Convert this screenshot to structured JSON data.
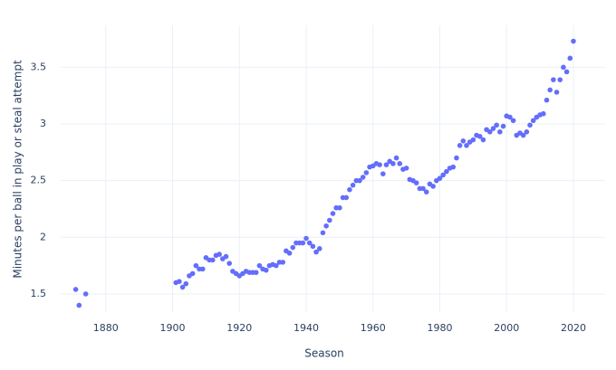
{
  "chart_data": {
    "type": "scatter",
    "x_label": "Season",
    "y_label": "Minutes per ball in play or steal attempt",
    "color": "#636efa",
    "grid": true,
    "x": [
      1871,
      1872,
      1874,
      1901,
      1902,
      1903,
      1904,
      1905,
      1906,
      1907,
      1908,
      1909,
      1910,
      1911,
      1912,
      1913,
      1914,
      1915,
      1916,
      1917,
      1918,
      1919,
      1920,
      1921,
      1922,
      1923,
      1924,
      1925,
      1926,
      1927,
      1928,
      1929,
      1930,
      1931,
      1932,
      1933,
      1934,
      1935,
      1936,
      1937,
      1938,
      1939,
      1940,
      1941,
      1942,
      1943,
      1944,
      1945,
      1946,
      1947,
      1948,
      1949,
      1950,
      1951,
      1952,
      1953,
      1954,
      1955,
      1956,
      1957,
      1958,
      1959,
      1960,
      1961,
      1962,
      1963,
      1964,
      1965,
      1966,
      1967,
      1968,
      1969,
      1970,
      1971,
      1972,
      1973,
      1974,
      1975,
      1976,
      1977,
      1978,
      1979,
      1980,
      1981,
      1982,
      1983,
      1984,
      1985,
      1986,
      1987,
      1988,
      1989,
      1990,
      1991,
      1992,
      1993,
      1994,
      1995,
      1996,
      1997,
      1998,
      1999,
      2000,
      2001,
      2002,
      2003,
      2004,
      2005,
      2006,
      2007,
      2008,
      2009,
      2010,
      2011,
      2012,
      2013,
      2014,
      2015,
      2016,
      2017,
      2018,
      2019,
      2020
    ],
    "values": [
      1.54,
      1.4,
      1.5,
      1.6,
      1.61,
      1.56,
      1.59,
      1.66,
      1.68,
      1.75,
      1.72,
      1.72,
      1.82,
      1.8,
      1.8,
      1.84,
      1.85,
      1.81,
      1.83,
      1.77,
      1.7,
      1.68,
      1.66,
      1.68,
      1.7,
      1.69,
      1.69,
      1.69,
      1.75,
      1.72,
      1.71,
      1.75,
      1.76,
      1.75,
      1.78,
      1.78,
      1.88,
      1.86,
      1.91,
      1.95,
      1.95,
      1.95,
      1.99,
      1.95,
      1.92,
      1.87,
      1.9,
      2.04,
      2.1,
      2.15,
      2.21,
      2.26,
      2.26,
      2.35,
      2.35,
      2.42,
      2.46,
      2.5,
      2.5,
      2.53,
      2.57,
      2.62,
      2.63,
      2.65,
      2.64,
      2.56,
      2.64,
      2.67,
      2.65,
      2.7,
      2.65,
      2.6,
      2.61,
      2.51,
      2.5,
      2.48,
      2.43,
      2.43,
      2.4,
      2.47,
      2.45,
      2.5,
      2.52,
      2.55,
      2.58,
      2.61,
      2.62,
      2.7,
      2.81,
      2.85,
      2.81,
      2.84,
      2.86,
      2.9,
      2.89,
      2.86,
      2.95,
      2.93,
      2.96,
      2.99,
      2.93,
      2.98,
      3.07,
      3.06,
      3.03,
      2.9,
      2.92,
      2.9,
      2.93,
      2.99,
      3.03,
      3.06,
      3.08,
      3.09,
      3.21,
      3.3,
      3.39,
      3.28,
      3.39,
      3.5,
      3.46,
      3.58,
      3.73
    ],
    "xlim": [
      1866.5,
      2029.5
    ],
    "ylim": [
      1.34,
      3.87
    ],
    "xticks": [
      1880,
      1900,
      1920,
      1940,
      1960,
      1980,
      2000,
      2020
    ],
    "yticks": [
      1.5,
      2,
      2.5,
      3,
      3.5
    ]
  }
}
